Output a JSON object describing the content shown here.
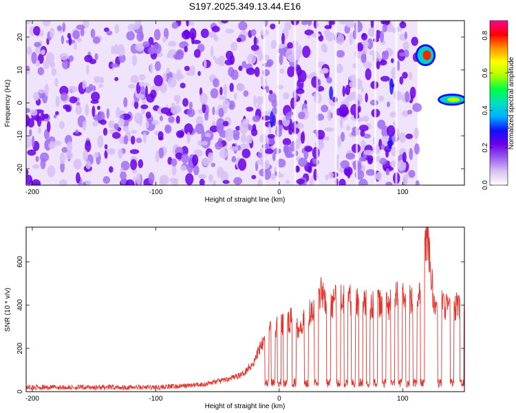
{
  "title": "S197.2025.349.13.44.E16",
  "chart_data": [
    {
      "type": "heatmap",
      "xlabel": "Height of straight line (km)",
      "ylabel": "Frequency (Hz)",
      "xlim": [
        -205,
        150
      ],
      "ylim": [
        -25,
        25
      ],
      "xticks": [
        -200,
        -100,
        0,
        100
      ],
      "yticks": [
        -20,
        -10,
        0,
        10,
        20
      ],
      "colorbar": {
        "label": "Normalized spectral amplitude",
        "range": [
          0.0,
          0.88
        ],
        "ticks": [
          "0.0",
          "0.2",
          "0.4",
          "0.6",
          "0.8"
        ],
        "colors": [
          "#ffffff",
          "#d9c2f0",
          "#9b5cf0",
          "#6a00e8",
          "#1010ff",
          "#00b0ff",
          "#00e0c0",
          "#00ff40",
          "#b0ff00",
          "#ffff00",
          "#ff9000",
          "#ff0000",
          "#ff0090"
        ]
      },
      "features": [
        {
          "x_range": [
            -205,
            112
          ],
          "y_range": [
            -25,
            25
          ],
          "description_value": 0.2,
          "note": "broadband noise"
        },
        {
          "x_range": [
            112,
            125
          ],
          "y_range": [
            12,
            17
          ],
          "peak_value": 0.85
        },
        {
          "x_range": [
            130,
            150
          ],
          "y_range": [
            0,
            2
          ],
          "peak_value": 0.55
        }
      ]
    },
    {
      "type": "line",
      "xlabel": "Height of straight line (km)",
      "ylabel": "SNR (10 * v/v)",
      "xlim": [
        -205,
        150
      ],
      "ylim": [
        0,
        760
      ],
      "xticks": [
        -200,
        -100,
        0,
        100
      ],
      "yticks": [
        0,
        200,
        400,
        600
      ],
      "color": "#e8302a",
      "x": [
        -205,
        -150,
        -100,
        -80,
        -60,
        -40,
        -30,
        -20,
        -15,
        -10,
        -5,
        0,
        5,
        10,
        15,
        20,
        30,
        35,
        40,
        50,
        60,
        70,
        80,
        90,
        100,
        110,
        115,
        118,
        120,
        125,
        130,
        140,
        150
      ],
      "y": [
        20,
        20,
        20,
        25,
        35,
        60,
        80,
        140,
        220,
        280,
        300,
        300,
        320,
        330,
        300,
        330,
        420,
        470,
        400,
        440,
        420,
        400,
        400,
        400,
        460,
        400,
        480,
        650,
        760,
        400,
        410,
        390,
        390
      ],
      "drop_outs": [
        {
          "x": -10,
          "y": 20
        },
        {
          "x": -5,
          "y": 20
        },
        {
          "x": 0,
          "y": 20
        },
        {
          "x": 5,
          "y": 20
        },
        {
          "x": 12,
          "y": 30
        },
        {
          "x": 22,
          "y": 30
        },
        {
          "x": 30,
          "y": 30
        },
        {
          "x": 40,
          "y": 40
        },
        {
          "x": 48,
          "y": 40
        },
        {
          "x": 54,
          "y": 40
        },
        {
          "x": 60,
          "y": 40
        },
        {
          "x": 66,
          "y": 40
        },
        {
          "x": 72,
          "y": 40
        },
        {
          "x": 78,
          "y": 40
        },
        {
          "x": 85,
          "y": 40
        },
        {
          "x": 92,
          "y": 40
        },
        {
          "x": 98,
          "y": 40
        },
        {
          "x": 104,
          "y": 40
        },
        {
          "x": 110,
          "y": 40
        },
        {
          "x": 116,
          "y": 40
        },
        {
          "x": 130,
          "y": 40
        },
        {
          "x": 140,
          "y": 40
        },
        {
          "x": 148,
          "y": 40
        }
      ]
    }
  ]
}
